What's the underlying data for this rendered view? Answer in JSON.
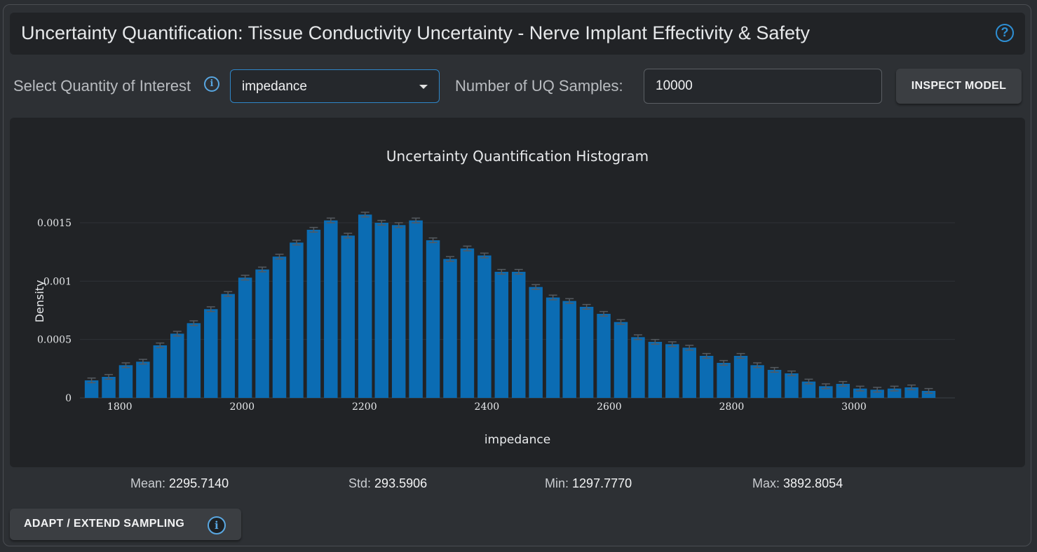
{
  "header": {
    "title": "Uncertainty Quantification: Tissue Conductivity Uncertainty - Nerve Implant Effectivity & Safety",
    "help_icon": "help-circle-icon",
    "help_glyph": "?"
  },
  "controls": {
    "qoi_label": "Select Quantity of Interest",
    "info_glyph": "i",
    "qoi_value": "impedance",
    "samples_label": "Number of UQ Samples:",
    "samples_value": "10000",
    "inspect_label": "INSPECT MODEL"
  },
  "chart_data": {
    "type": "bar",
    "title": "Uncertainty Quantification Histogram",
    "xlabel": "impedance",
    "ylabel": "Density",
    "xlim": [
      1735,
      3165
    ],
    "ylim": [
      0,
      0.00165
    ],
    "x_ticks": [
      1800,
      2000,
      2200,
      2400,
      2600,
      2800,
      3000
    ],
    "y_ticks": [
      {
        "value": 0,
        "label": "0"
      },
      {
        "value": 0.0005,
        "label": "0.0005"
      },
      {
        "value": 0.001,
        "label": "0.001"
      },
      {
        "value": 0.0015,
        "label": "0.0015"
      }
    ],
    "bin_width": 27.9,
    "x": [
      1754,
      1782,
      1810,
      1838,
      1866,
      1894,
      1921,
      1949,
      1977,
      2005,
      2033,
      2061,
      2089,
      2117,
      2145,
      2173,
      2201,
      2228,
      2256,
      2284,
      2312,
      2340,
      2368,
      2396,
      2424,
      2452,
      2480,
      2508,
      2535,
      2563,
      2591,
      2619,
      2647,
      2675,
      2703,
      2731,
      2759,
      2787,
      2815,
      2842,
      2870,
      2898,
      2926,
      2954,
      2982,
      3010,
      3038,
      3066,
      3094,
      3122
    ],
    "values": [
      0.00015,
      0.00018,
      0.00028,
      0.00031,
      0.00045,
      0.00055,
      0.00064,
      0.00076,
      0.00089,
      0.00103,
      0.0011,
      0.00121,
      0.00133,
      0.00144,
      0.00152,
      0.00139,
      0.00157,
      0.0015,
      0.00148,
      0.00152,
      0.00135,
      0.00119,
      0.00128,
      0.00122,
      0.00108,
      0.00108,
      0.00095,
      0.00086,
      0.00083,
      0.00078,
      0.00072,
      0.00065,
      0.00052,
      0.00048,
      0.00046,
      0.00043,
      0.00036,
      0.0003,
      0.00036,
      0.00028,
      0.00024,
      0.00021,
      0.00014,
      0.0001,
      0.00012,
      8e-05,
      7e-05,
      8e-05,
      9e-05,
      6e-05
    ],
    "error": 2e-05,
    "bar_color": "#0b6cb3",
    "error_color": "#555a60",
    "grid": true
  },
  "stats": {
    "mean_label": "Mean:",
    "mean_value": "2295.7140",
    "std_label": "Std:",
    "std_value": "293.5906",
    "min_label": "Min:",
    "min_value": "1297.7770",
    "max_label": "Max:",
    "max_value": "3892.8054"
  },
  "adapt": {
    "label": "ADAPT / EXTEND SAMPLING"
  }
}
